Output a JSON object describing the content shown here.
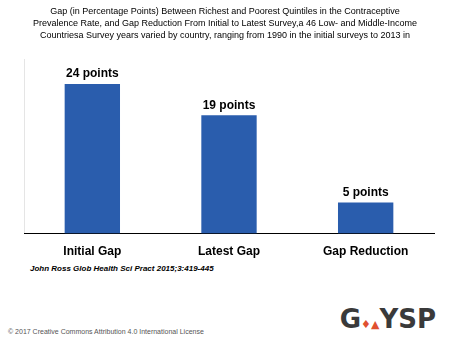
{
  "chart_data": {
    "type": "bar",
    "title": [
      "Gap (in Percentage Points) Between Richest and Poorest Quintiles in the Contraceptive",
      "Prevalence Rate, and Gap Reduction From Initial to Latest Survey,a 46 Low- and Middle-Income",
      "Countriesa Survey years varied by country, ranging from 1990 in the initial surveys to 2013 in"
    ],
    "categories": [
      "Initial Gap",
      "Latest Gap",
      "Gap Reduction"
    ],
    "values": [
      24,
      19,
      5
    ],
    "value_labels": [
      "24 points",
      "19 points",
      "5 points"
    ],
    "data_labels": true,
    "color": "#2A5DAD",
    "ylim": [
      0,
      28
    ],
    "tick_labels": "x",
    "grid": false,
    "annotations": [
      "John Ross Glob Health Sci Pract 2015;3:419-445",
      "© 2017 Creative Commons Attribution 4.0 International License",
      "G",
      "♦",
      "▲",
      "Y",
      "SP"
    ]
  }
}
